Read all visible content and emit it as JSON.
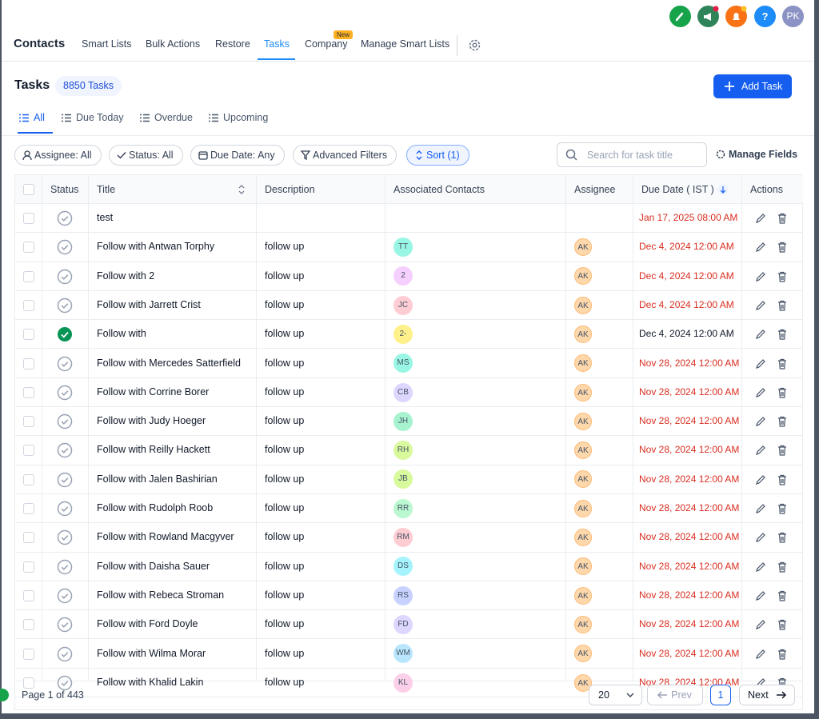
{
  "header": {
    "user_initials": "PK",
    "app_title": "Contacts",
    "tabs": [
      "Smart Lists",
      "Bulk Actions",
      "Restore",
      "Tasks",
      "Company",
      "Manage Smart Lists"
    ],
    "active_tab": 3,
    "new_badge": "New"
  },
  "tasks": {
    "title": "Tasks",
    "count_label": "8850 Tasks",
    "add_button": "Add Task",
    "subtabs": [
      "All",
      "Due Today",
      "Overdue",
      "Upcoming"
    ],
    "filters": [
      "Assignee: All",
      "Status: All",
      "Due Date: Any",
      "Advanced Filters",
      "Sort (1)"
    ],
    "search_placeholder": "Search for task title",
    "manage_fields": "Manage Fields"
  },
  "table": {
    "columns": [
      "Status",
      "Title",
      "Description",
      "Associated Contacts",
      "Assignee",
      "Due Date ( IST )",
      "Actions"
    ],
    "rows": [
      {
        "title": "test",
        "due": "Jan 17, 2025 08:00 AM",
        "done": false,
        "overdue": true
      },
      {
        "title": "Follow with Antwan Torphy",
        "description": "follow up",
        "contact": "TT",
        "contact_color": "#99f6e4",
        "assignee": "AK",
        "due": "Dec 4, 2024 12:00 AM",
        "done": false,
        "overdue": true
      },
      {
        "title": "Follow with 2",
        "description": "follow up",
        "contact": "2",
        "contact_color": "#f5d0fe",
        "assignee": "AK",
        "due": "Dec 4, 2024 12:00 AM",
        "done": false,
        "overdue": true
      },
      {
        "title": "Follow with Jarrett Crist",
        "description": "follow up",
        "contact": "JC",
        "contact_color": "#fecdd3",
        "assignee": "AK",
        "due": "Dec 4, 2024 12:00 AM",
        "done": false,
        "overdue": true
      },
      {
        "title": "Follow with",
        "description": "follow up",
        "contact": "2-",
        "contact_color": "#fef08a",
        "assignee": "AK",
        "due": "Dec 4, 2024 12:00 AM",
        "done": true,
        "overdue": false
      },
      {
        "title": "Follow with Mercedes Satterfield",
        "description": "follow up",
        "contact": "MS",
        "contact_color": "#99f6e4",
        "assignee": "AK",
        "due": "Nov 28, 2024 12:00 AM",
        "done": false,
        "overdue": true
      },
      {
        "title": "Follow with Corrine Borer",
        "description": "follow up",
        "contact": "CB",
        "contact_color": "#ddd6fe",
        "assignee": "AK",
        "due": "Nov 28, 2024 12:00 AM",
        "done": false,
        "overdue": true
      },
      {
        "title": "Follow with Judy Hoeger",
        "description": "follow up",
        "contact": "JH",
        "contact_color": "#a7f3d0",
        "assignee": "AK",
        "due": "Nov 28, 2024 12:00 AM",
        "done": false,
        "overdue": true
      },
      {
        "title": "Follow with Reilly Hackett",
        "description": "follow up",
        "contact": "RH",
        "contact_color": "#d9f99d",
        "assignee": "AK",
        "due": "Nov 28, 2024 12:00 AM",
        "done": false,
        "overdue": true
      },
      {
        "title": "Follow with Jalen Bashirian",
        "description": "follow up",
        "contact": "JB",
        "contact_color": "#d9f99d",
        "assignee": "AK",
        "due": "Nov 28, 2024 12:00 AM",
        "done": false,
        "overdue": true
      },
      {
        "title": "Follow with Rudolph Roob",
        "description": "follow up",
        "contact": "RR",
        "contact_color": "#bbf7d0",
        "assignee": "AK",
        "due": "Nov 28, 2024 12:00 AM",
        "done": false,
        "overdue": true
      },
      {
        "title": "Follow with Rowland Macgyver",
        "description": "follow up",
        "contact": "RM",
        "contact_color": "#fecdd3",
        "assignee": "AK",
        "due": "Nov 28, 2024 12:00 AM",
        "done": false,
        "overdue": true
      },
      {
        "title": "Follow with Daisha Sauer",
        "description": "follow up",
        "contact": "DS",
        "contact_color": "#a5f3fc",
        "assignee": "AK",
        "due": "Nov 28, 2024 12:00 AM",
        "done": false,
        "overdue": true
      },
      {
        "title": "Follow with Rebeca Stroman",
        "description": "follow up",
        "contact": "RS",
        "contact_color": "#c7d2fe",
        "assignee": "AK",
        "due": "Nov 28, 2024 12:00 AM",
        "done": false,
        "overdue": true
      },
      {
        "title": "Follow with Ford Doyle",
        "description": "follow up",
        "contact": "FD",
        "contact_color": "#ddd6fe",
        "assignee": "AK",
        "due": "Nov 28, 2024 12:00 AM",
        "done": false,
        "overdue": true
      },
      {
        "title": "Follow with Wilma Morar",
        "description": "follow up",
        "contact": "WM",
        "contact_color": "#bae6fd",
        "assignee": "AK",
        "due": "Nov 28, 2024 12:00 AM",
        "done": false,
        "overdue": true
      },
      {
        "title": "Follow with Khalid Lakin",
        "description": "follow up",
        "contact": "KL",
        "contact_color": "#fbcfe8",
        "assignee": "AK",
        "due": "Nov 28, 2024 12:00 AM",
        "done": false,
        "overdue": true
      }
    ]
  },
  "footer": {
    "page_info": "Page 1 of 443",
    "page_size": "20",
    "prev": "Prev",
    "current_page": "1",
    "next": "Next"
  }
}
